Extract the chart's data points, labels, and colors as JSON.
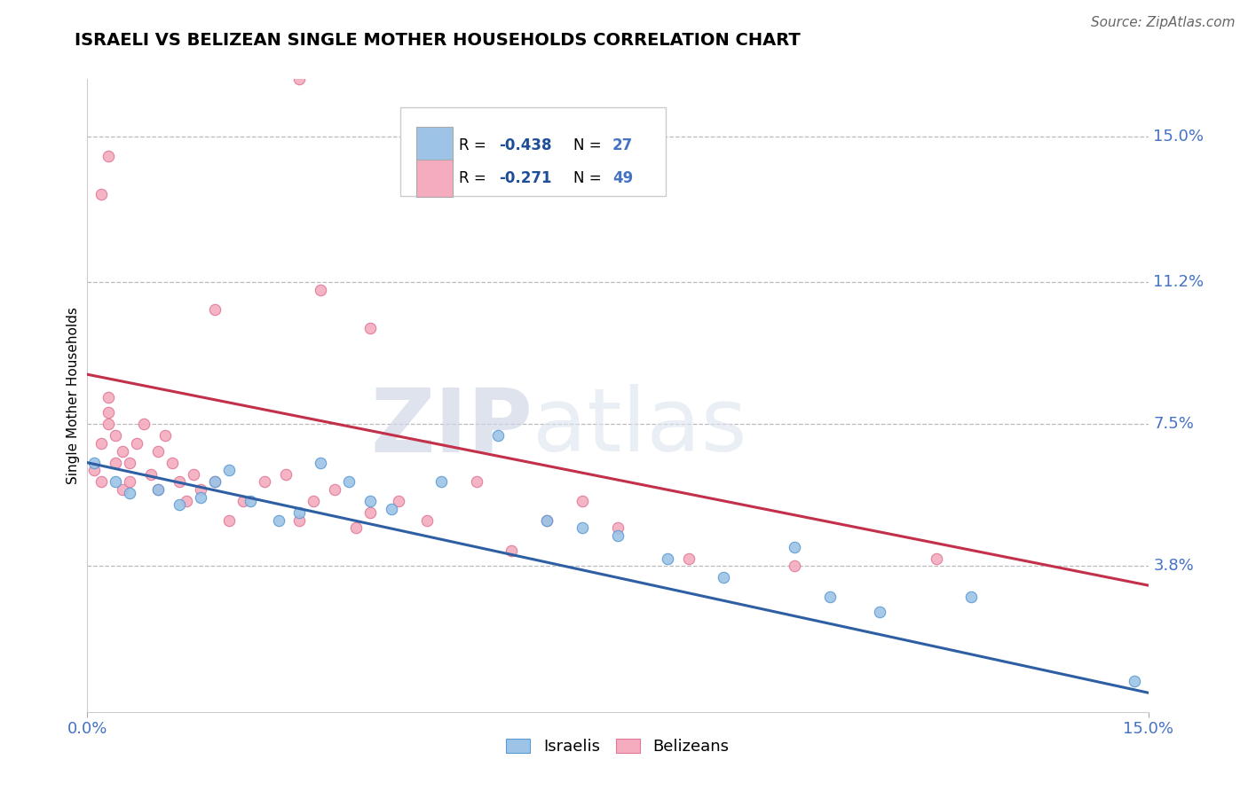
{
  "title": "ISRAELI VS BELIZEAN SINGLE MOTHER HOUSEHOLDS CORRELATION CHART",
  "source": "Source: ZipAtlas.com",
  "ylabel": "Single Mother Households",
  "ytick_labels": [
    "15.0%",
    "11.2%",
    "7.5%",
    "3.8%"
  ],
  "ytick_values": [
    0.15,
    0.112,
    0.075,
    0.038
  ],
  "xlim": [
    0.0,
    0.15
  ],
  "ylim": [
    0.0,
    0.165
  ],
  "watermark_line1": "ZIP",
  "watermark_line2": "atlas",
  "legend_israeli_R": "-0.438",
  "legend_israeli_N": "27",
  "legend_belizean_R": "-0.271",
  "legend_belizean_N": "49",
  "israeli_scatter": [
    [
      0.001,
      0.065
    ],
    [
      0.004,
      0.06
    ],
    [
      0.006,
      0.057
    ],
    [
      0.01,
      0.058
    ],
    [
      0.013,
      0.054
    ],
    [
      0.016,
      0.056
    ],
    [
      0.018,
      0.06
    ],
    [
      0.02,
      0.063
    ],
    [
      0.023,
      0.055
    ],
    [
      0.027,
      0.05
    ],
    [
      0.03,
      0.052
    ],
    [
      0.033,
      0.065
    ],
    [
      0.037,
      0.06
    ],
    [
      0.04,
      0.055
    ],
    [
      0.043,
      0.053
    ],
    [
      0.05,
      0.06
    ],
    [
      0.058,
      0.072
    ],
    [
      0.065,
      0.05
    ],
    [
      0.07,
      0.048
    ],
    [
      0.075,
      0.046
    ],
    [
      0.082,
      0.04
    ],
    [
      0.09,
      0.035
    ],
    [
      0.1,
      0.043
    ],
    [
      0.105,
      0.03
    ],
    [
      0.112,
      0.026
    ],
    [
      0.125,
      0.03
    ],
    [
      0.148,
      0.008
    ]
  ],
  "belizean_scatter": [
    [
      0.001,
      0.063
    ],
    [
      0.002,
      0.06
    ],
    [
      0.002,
      0.07
    ],
    [
      0.003,
      0.075
    ],
    [
      0.003,
      0.078
    ],
    [
      0.003,
      0.082
    ],
    [
      0.004,
      0.065
    ],
    [
      0.004,
      0.072
    ],
    [
      0.005,
      0.058
    ],
    [
      0.005,
      0.068
    ],
    [
      0.006,
      0.06
    ],
    [
      0.006,
      0.065
    ],
    [
      0.007,
      0.07
    ],
    [
      0.008,
      0.075
    ],
    [
      0.009,
      0.062
    ],
    [
      0.01,
      0.068
    ],
    [
      0.01,
      0.058
    ],
    [
      0.011,
      0.072
    ],
    [
      0.012,
      0.065
    ],
    [
      0.013,
      0.06
    ],
    [
      0.014,
      0.055
    ],
    [
      0.015,
      0.062
    ],
    [
      0.016,
      0.058
    ],
    [
      0.018,
      0.06
    ],
    [
      0.02,
      0.05
    ],
    [
      0.022,
      0.055
    ],
    [
      0.025,
      0.06
    ],
    [
      0.028,
      0.062
    ],
    [
      0.03,
      0.05
    ],
    [
      0.032,
      0.055
    ],
    [
      0.035,
      0.058
    ],
    [
      0.038,
      0.048
    ],
    [
      0.04,
      0.052
    ],
    [
      0.044,
      0.055
    ],
    [
      0.048,
      0.05
    ],
    [
      0.055,
      0.06
    ],
    [
      0.06,
      0.042
    ],
    [
      0.065,
      0.05
    ],
    [
      0.07,
      0.055
    ],
    [
      0.075,
      0.048
    ],
    [
      0.002,
      0.135
    ],
    [
      0.003,
      0.145
    ],
    [
      0.018,
      0.105
    ],
    [
      0.03,
      0.165
    ],
    [
      0.033,
      0.11
    ],
    [
      0.04,
      0.1
    ],
    [
      0.085,
      0.04
    ],
    [
      0.1,
      0.038
    ],
    [
      0.12,
      0.04
    ]
  ],
  "israeli_line": {
    "x0": 0.0,
    "y0": 0.065,
    "x1": 0.15,
    "y1": 0.005
  },
  "belizean_line": {
    "x0": 0.0,
    "y0": 0.088,
    "x1": 0.15,
    "y1": 0.033
  },
  "scatter_size": 80,
  "israeli_color": "#9dc3e6",
  "israeli_edge_color": "#5b9bd5",
  "belizean_color": "#f4acbe",
  "belizean_edge_color": "#e07898",
  "israeli_line_color": "#2e5fa3",
  "belizean_line_color": "#c2304a",
  "grid_color": "#bbbbbb",
  "background_color": "#ffffff",
  "ytick_color": "#4472c4",
  "xtick_color": "#4472c4",
  "legend_R_color": "#1f4e99",
  "legend_N_color": "#4472c4",
  "title_fontsize": 14,
  "source_fontsize": 11,
  "tick_fontsize": 13,
  "ylabel_fontsize": 11
}
